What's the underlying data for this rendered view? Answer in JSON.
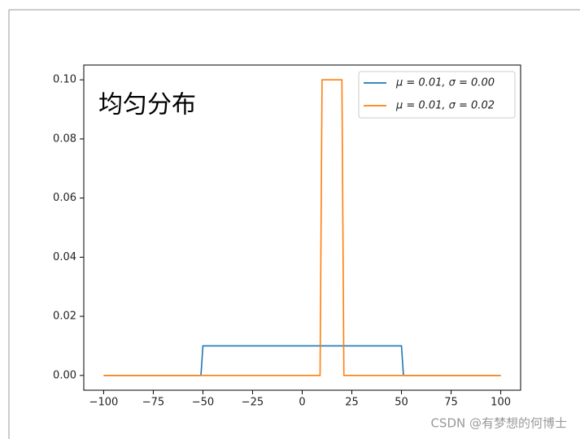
{
  "chart_data": {
    "type": "line",
    "annotation": "均匀分布",
    "watermark": "CSDN @有梦想的何博士",
    "series": [
      {
        "name": "μ = 0.01,  σ = 0.00",
        "color": "#1f77b4",
        "x": [
          -100,
          -51,
          -50,
          50,
          51,
          100
        ],
        "values": [
          0,
          0,
          0.01,
          0.01,
          0,
          0
        ]
      },
      {
        "name": "μ = 0.01,  σ = 0.02",
        "color": "#ff7f0e",
        "x": [
          -100,
          9,
          10,
          20,
          21,
          100
        ],
        "values": [
          0,
          0,
          0.1,
          0.1,
          0,
          0
        ]
      }
    ],
    "xlim": [
      -110,
      110
    ],
    "ylim": [
      -0.005,
      0.105
    ],
    "xticks": [
      {
        "value": -100,
        "label": "−100"
      },
      {
        "value": -75,
        "label": "−75"
      },
      {
        "value": -50,
        "label": "−50"
      },
      {
        "value": -25,
        "label": "−25"
      },
      0,
      25,
      50,
      75,
      100
    ],
    "yticks": [
      {
        "value": 0,
        "label": "0.00"
      },
      {
        "value": 0.02,
        "label": "0.02"
      },
      {
        "value": 0.04,
        "label": "0.04"
      },
      {
        "value": 0.06,
        "label": "0.06"
      },
      {
        "value": 0.08,
        "label": "0.08"
      },
      {
        "value": 0.1,
        "label": "0.10"
      }
    ],
    "legend": "upper right"
  }
}
